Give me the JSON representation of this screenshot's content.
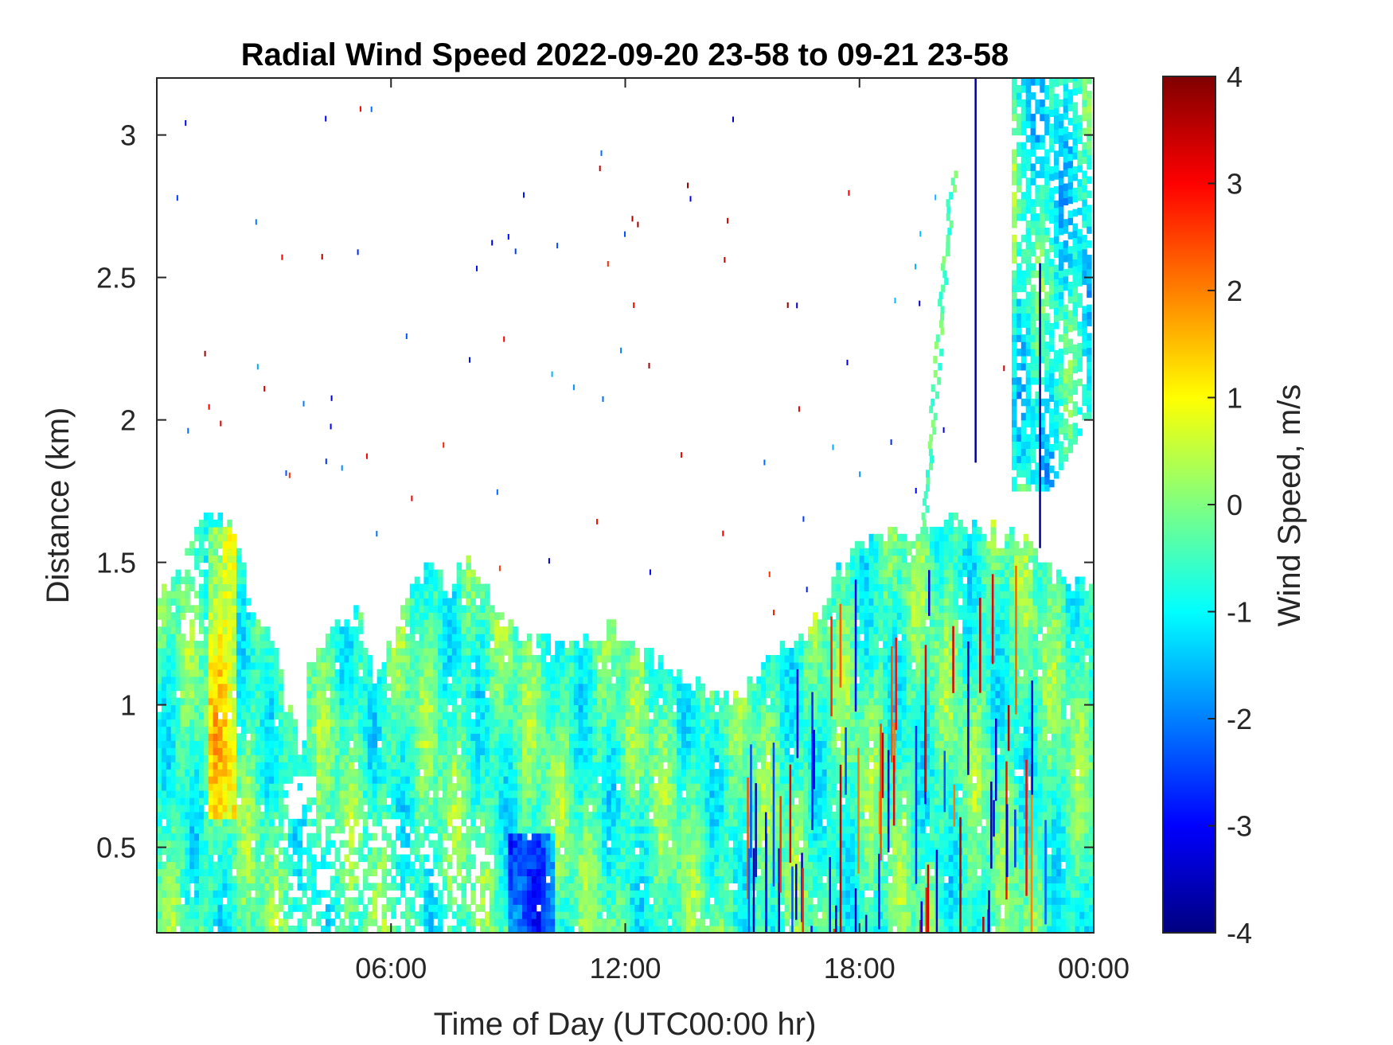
{
  "chart_data": {
    "type": "heatmap",
    "title": "Radial Wind Speed 2022-09-20 23-58 to 09-21 23-58",
    "xlabel": "Time of Day (UTC00:00 hr)",
    "ylabel": "Distance (km)",
    "colorbar_label": "Wind Speed, m/s",
    "colormap": "jet",
    "xlim_hours": [
      0,
      24
    ],
    "ylim_km": [
      0.2,
      3.2
    ],
    "clim": [
      -4,
      4
    ],
    "x_ticks": [
      {
        "hour": 6,
        "label": "06:00"
      },
      {
        "hour": 12,
        "label": "12:00"
      },
      {
        "hour": 18,
        "label": "18:00"
      },
      {
        "hour": 24,
        "label": "00:00"
      }
    ],
    "y_ticks": [
      {
        "km": 0.5,
        "label": "0.5"
      },
      {
        "km": 1,
        "label": "1"
      },
      {
        "km": 1.5,
        "label": "1.5"
      },
      {
        "km": 2,
        "label": "2"
      },
      {
        "km": 2.5,
        "label": "2.5"
      },
      {
        "km": 3,
        "label": "3"
      }
    ],
    "colorbar_ticks": [
      {
        "value": -4,
        "label": "-4"
      },
      {
        "value": -3,
        "label": "-3"
      },
      {
        "value": -2,
        "label": "-2"
      },
      {
        "value": -1,
        "label": "-1"
      },
      {
        "value": 0,
        "label": "0"
      },
      {
        "value": 1,
        "label": "1"
      },
      {
        "value": 2,
        "label": "2"
      },
      {
        "value": 3,
        "label": "3"
      },
      {
        "value": 4,
        "label": "4"
      }
    ],
    "data_top_profile_km": [
      {
        "hour": 0,
        "km": 1.35
      },
      {
        "hour": 0.8,
        "km": 1.5
      },
      {
        "hour": 1.2,
        "km": 1.7
      },
      {
        "hour": 2.0,
        "km": 1.6
      },
      {
        "hour": 2.5,
        "km": 1.3
      },
      {
        "hour": 3.1,
        "km": 1.15
      },
      {
        "hour": 3.3,
        "km": 1.0
      },
      {
        "hour": 3.6,
        "km": 0.9
      },
      {
        "hour": 3.7,
        "km": 0.75
      },
      {
        "hour": 3.9,
        "km": 1.1
      },
      {
        "hour": 4.5,
        "km": 1.25
      },
      {
        "hour": 5.2,
        "km": 1.3
      },
      {
        "hour": 5.6,
        "km": 1.05
      },
      {
        "hour": 6.4,
        "km": 1.35
      },
      {
        "hour": 7.0,
        "km": 1.47
      },
      {
        "hour": 7.5,
        "km": 1.4
      },
      {
        "hour": 8.1,
        "km": 1.5
      },
      {
        "hour": 8.8,
        "km": 1.3
      },
      {
        "hour": 9.5,
        "km": 1.2
      },
      {
        "hour": 11.0,
        "km": 1.2
      },
      {
        "hour": 11.6,
        "km": 1.28
      },
      {
        "hour": 12.3,
        "km": 1.2
      },
      {
        "hour": 13.0,
        "km": 1.12
      },
      {
        "hour": 14.0,
        "km": 1.05
      },
      {
        "hour": 14.8,
        "km": 1.0
      },
      {
        "hour": 15.5,
        "km": 1.15
      },
      {
        "hour": 16.5,
        "km": 1.25
      },
      {
        "hour": 17.0,
        "km": 1.3
      },
      {
        "hour": 17.8,
        "km": 1.55
      },
      {
        "hour": 18.4,
        "km": 1.6
      },
      {
        "hour": 19.5,
        "km": 1.6
      },
      {
        "hour": 20.3,
        "km": 1.65
      },
      {
        "hour": 21.3,
        "km": 1.6
      },
      {
        "hour": 22.4,
        "km": 1.55
      },
      {
        "hour": 23.0,
        "km": 1.45
      },
      {
        "hour": 24.0,
        "km": 1.4
      }
    ],
    "data_regions": [
      {
        "name": "main boundary layer",
        "x_range_hours": [
          0,
          24
        ],
        "y_range_km": [
          0.2,
          1.7
        ],
        "typical_wind_ms": [
          -1,
          0.5
        ]
      },
      {
        "name": "late-day upper plume",
        "x_range_hours": [
          21.9,
          23.9
        ],
        "y_range_km": [
          1.75,
          3.2
        ],
        "typical_wind_ms": [
          -1.2,
          0
        ]
      },
      {
        "name": "morning positive streak",
        "x_range_hours": [
          1.3,
          2.0
        ],
        "y_range_km": [
          0.6,
          1.6
        ],
        "typical_wind_ms": [
          1,
          2
        ]
      },
      {
        "name": "mid-morning negative patch",
        "x_range_hours": [
          8.9,
          10.1
        ],
        "y_range_km": [
          0.25,
          0.55
        ],
        "typical_wind_ms": [
          -2.5,
          -1.5
        ]
      },
      {
        "name": "evening convective streaks",
        "x_range_hours": [
          16.2,
          21.2
        ],
        "y_range_km": [
          0.2,
          1.6
        ],
        "typical_wind_ms": [
          -3,
          3.5
        ]
      }
    ]
  }
}
